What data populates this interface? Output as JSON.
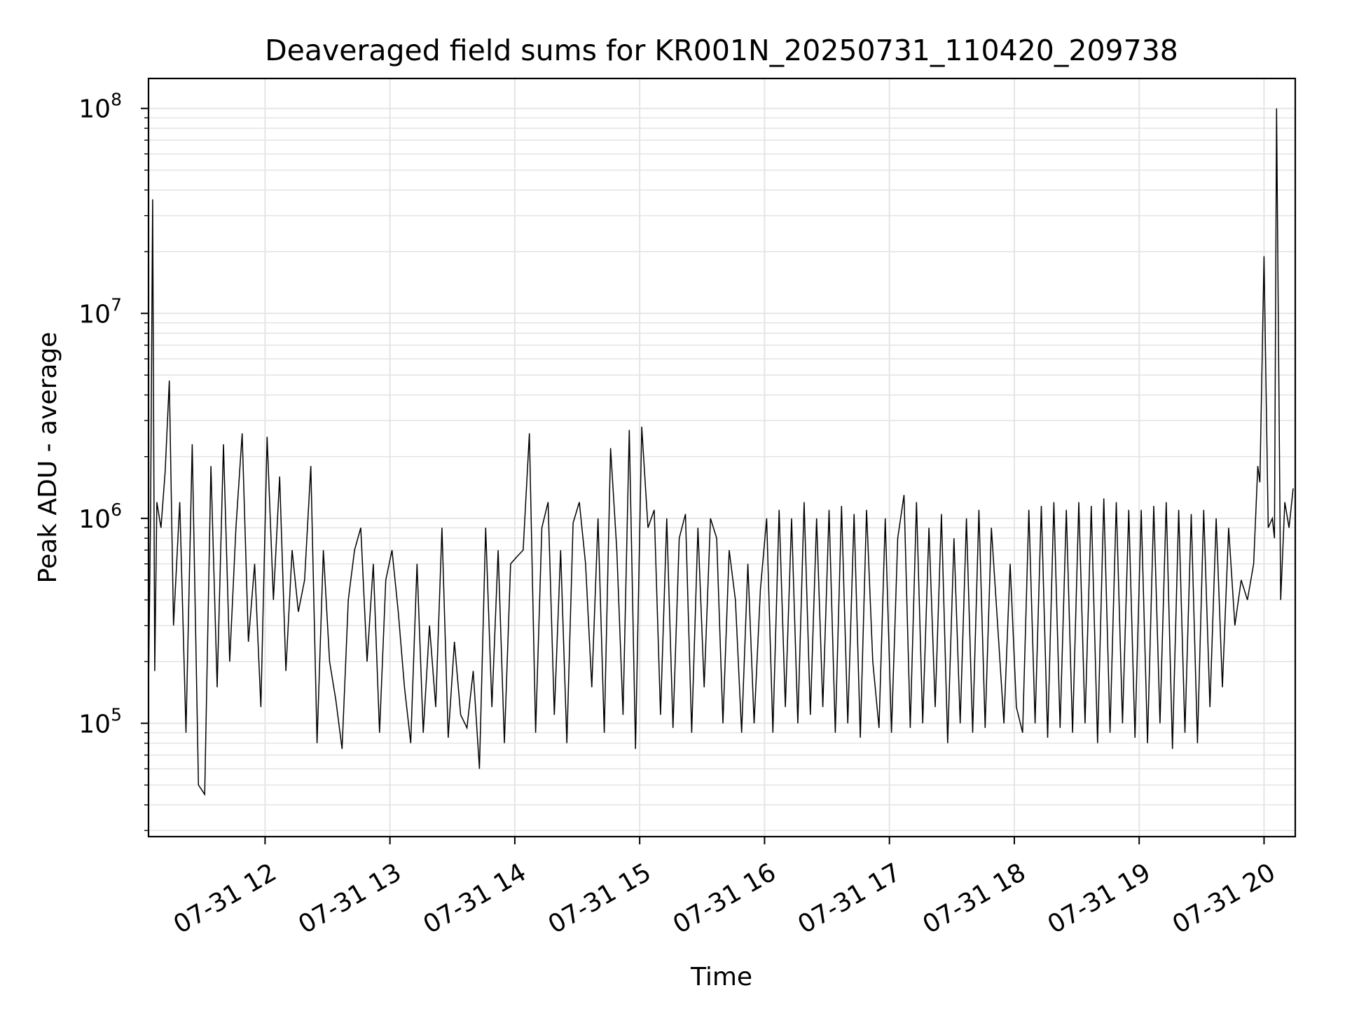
{
  "chart_data": {
    "type": "line",
    "title": "Deaveraged field sums for KR001N_20250731_110420_209738",
    "xlabel": "Time",
    "ylabel": "Peak ADU - average",
    "y_scale": "log",
    "grid": true,
    "grid_includes_minor": true,
    "line_color": "#000000",
    "grid_color": "#e5e5e5",
    "xlim": [
      "2025-07-31 11:04",
      "2025-07-31 20:15"
    ],
    "ylim": [
      28000,
      140000000
    ],
    "x_ticks": [
      {
        "value": "2025-07-31 12:00",
        "label": "07-31 12"
      },
      {
        "value": "2025-07-31 13:00",
        "label": "07-31 13"
      },
      {
        "value": "2025-07-31 14:00",
        "label": "07-31 14"
      },
      {
        "value": "2025-07-31 15:00",
        "label": "07-31 15"
      },
      {
        "value": "2025-07-31 16:00",
        "label": "07-31 16"
      },
      {
        "value": "2025-07-31 17:00",
        "label": "07-31 17"
      },
      {
        "value": "2025-07-31 18:00",
        "label": "07-31 18"
      },
      {
        "value": "2025-07-31 19:00",
        "label": "07-31 19"
      },
      {
        "value": "2025-07-31 20:00",
        "label": "07-31 20"
      }
    ],
    "y_ticks": [
      {
        "value": 100000,
        "base": "10",
        "exp": "5"
      },
      {
        "value": 1000000,
        "base": "10",
        "exp": "6"
      },
      {
        "value": 10000000,
        "base": "10",
        "exp": "7"
      },
      {
        "value": 100000000,
        "base": "10",
        "exp": "8"
      }
    ],
    "series": [
      {
        "x": [
          "2025-07-31 11:04",
          "2025-07-31 11:05",
          "2025-07-31 11:06",
          "2025-07-31 11:07",
          "2025-07-31 11:08",
          "2025-07-31 11:10",
          "2025-07-31 11:12",
          "2025-07-31 11:14",
          "2025-07-31 11:16",
          "2025-07-31 11:19",
          "2025-07-31 11:22",
          "2025-07-31 11:25",
          "2025-07-31 11:28",
          "2025-07-31 11:31",
          "2025-07-31 11:34",
          "2025-07-31 11:37",
          "2025-07-31 11:40",
          "2025-07-31 11:43",
          "2025-07-31 11:46",
          "2025-07-31 11:49",
          "2025-07-31 11:52",
          "2025-07-31 11:55",
          "2025-07-31 11:58",
          "2025-07-31 12:01",
          "2025-07-31 12:04",
          "2025-07-31 12:07",
          "2025-07-31 12:10",
          "2025-07-31 12:13",
          "2025-07-31 12:16",
          "2025-07-31 12:19",
          "2025-07-31 12:22",
          "2025-07-31 12:25",
          "2025-07-31 12:28",
          "2025-07-31 12:31",
          "2025-07-31 12:34",
          "2025-07-31 12:37",
          "2025-07-31 12:40",
          "2025-07-31 12:43",
          "2025-07-31 12:46",
          "2025-07-31 12:49",
          "2025-07-31 12:52",
          "2025-07-31 12:55",
          "2025-07-31 12:58",
          "2025-07-31 13:01",
          "2025-07-31 13:04",
          "2025-07-31 13:07",
          "2025-07-31 13:10",
          "2025-07-31 13:13",
          "2025-07-31 13:16",
          "2025-07-31 13:19",
          "2025-07-31 13:22",
          "2025-07-31 13:25",
          "2025-07-31 13:28",
          "2025-07-31 13:31",
          "2025-07-31 13:34",
          "2025-07-31 13:37",
          "2025-07-31 13:40",
          "2025-07-31 13:43",
          "2025-07-31 13:46",
          "2025-07-31 13:49",
          "2025-07-31 13:52",
          "2025-07-31 13:55",
          "2025-07-31 13:58",
          "2025-07-31 14:01",
          "2025-07-31 14:04",
          "2025-07-31 14:07",
          "2025-07-31 14:10",
          "2025-07-31 14:13",
          "2025-07-31 14:16",
          "2025-07-31 14:19",
          "2025-07-31 14:22",
          "2025-07-31 14:25",
          "2025-07-31 14:28",
          "2025-07-31 14:31",
          "2025-07-31 14:34",
          "2025-07-31 14:37",
          "2025-07-31 14:40",
          "2025-07-31 14:43",
          "2025-07-31 14:46",
          "2025-07-31 14:49",
          "2025-07-31 14:52",
          "2025-07-31 14:55",
          "2025-07-31 14:58",
          "2025-07-31 15:01",
          "2025-07-31 15:04",
          "2025-07-31 15:07",
          "2025-07-31 15:10",
          "2025-07-31 15:13",
          "2025-07-31 15:16",
          "2025-07-31 15:19",
          "2025-07-31 15:22",
          "2025-07-31 15:25",
          "2025-07-31 15:28",
          "2025-07-31 15:31",
          "2025-07-31 15:34",
          "2025-07-31 15:37",
          "2025-07-31 15:40",
          "2025-07-31 15:43",
          "2025-07-31 15:46",
          "2025-07-31 15:49",
          "2025-07-31 15:52",
          "2025-07-31 15:55",
          "2025-07-31 15:58",
          "2025-07-31 16:01",
          "2025-07-31 16:04",
          "2025-07-31 16:07",
          "2025-07-31 16:10",
          "2025-07-31 16:13",
          "2025-07-31 16:16",
          "2025-07-31 16:19",
          "2025-07-31 16:22",
          "2025-07-31 16:25",
          "2025-07-31 16:28",
          "2025-07-31 16:31",
          "2025-07-31 16:34",
          "2025-07-31 16:37",
          "2025-07-31 16:40",
          "2025-07-31 16:43",
          "2025-07-31 16:46",
          "2025-07-31 16:49",
          "2025-07-31 16:52",
          "2025-07-31 16:55",
          "2025-07-31 16:58",
          "2025-07-31 17:01",
          "2025-07-31 17:04",
          "2025-07-31 17:07",
          "2025-07-31 17:10",
          "2025-07-31 17:13",
          "2025-07-31 17:16",
          "2025-07-31 17:19",
          "2025-07-31 17:22",
          "2025-07-31 17:25",
          "2025-07-31 17:28",
          "2025-07-31 17:31",
          "2025-07-31 17:34",
          "2025-07-31 17:37",
          "2025-07-31 17:40",
          "2025-07-31 17:43",
          "2025-07-31 17:46",
          "2025-07-31 17:49",
          "2025-07-31 17:52",
          "2025-07-31 17:55",
          "2025-07-31 17:58",
          "2025-07-31 18:01",
          "2025-07-31 18:04",
          "2025-07-31 18:07",
          "2025-07-31 18:10",
          "2025-07-31 18:13",
          "2025-07-31 18:16",
          "2025-07-31 18:19",
          "2025-07-31 18:22",
          "2025-07-31 18:25",
          "2025-07-31 18:28",
          "2025-07-31 18:31",
          "2025-07-31 18:34",
          "2025-07-31 18:37",
          "2025-07-31 18:40",
          "2025-07-31 18:43",
          "2025-07-31 18:46",
          "2025-07-31 18:49",
          "2025-07-31 18:52",
          "2025-07-31 18:55",
          "2025-07-31 18:58",
          "2025-07-31 19:01",
          "2025-07-31 19:04",
          "2025-07-31 19:07",
          "2025-07-31 19:10",
          "2025-07-31 19:13",
          "2025-07-31 19:16",
          "2025-07-31 19:19",
          "2025-07-31 19:22",
          "2025-07-31 19:25",
          "2025-07-31 19:28",
          "2025-07-31 19:31",
          "2025-07-31 19:34",
          "2025-07-31 19:37",
          "2025-07-31 19:40",
          "2025-07-31 19:43",
          "2025-07-31 19:46",
          "2025-07-31 19:49",
          "2025-07-31 19:52",
          "2025-07-31 19:55",
          "2025-07-31 19:57",
          "2025-07-31 19:58",
          "2025-07-31 20:00",
          "2025-07-31 20:02",
          "2025-07-31 20:04",
          "2025-07-31 20:05",
          "2025-07-31 20:06",
          "2025-07-31 20:08",
          "2025-07-31 20:10",
          "2025-07-31 20:12",
          "2025-07-31 20:14"
        ],
        "y": [
          150000,
          1100000,
          36000000,
          180000,
          1200000,
          900000,
          1700000,
          4700000,
          300000,
          1200000,
          90000,
          2300000,
          50000,
          45000,
          1800000,
          150000,
          2300000,
          200000,
          900000,
          2600000,
          250000,
          600000,
          120000,
          2500000,
          400000,
          1600000,
          180000,
          700000,
          350000,
          500000,
          1800000,
          80000,
          700000,
          200000,
          130000,
          75000,
          400000,
          700000,
          900000,
          200000,
          600000,
          90000,
          500000,
          700000,
          350000,
          150000,
          80000,
          600000,
          90000,
          300000,
          120000,
          900000,
          85000,
          250000,
          110000,
          95000,
          180000,
          60000,
          900000,
          120000,
          700000,
          80000,
          600000,
          650000,
          700000,
          2600000,
          90000,
          900000,
          1200000,
          110000,
          700000,
          80000,
          950000,
          1200000,
          600000,
          150000,
          1000000,
          90000,
          2200000,
          700000,
          110000,
          2700000,
          75000,
          2800000,
          900000,
          1100000,
          110000,
          1000000,
          95000,
          800000,
          1050000,
          90000,
          900000,
          150000,
          1000000,
          800000,
          100000,
          700000,
          400000,
          90000,
          600000,
          100000,
          450000,
          1000000,
          90000,
          1100000,
          120000,
          1000000,
          100000,
          1200000,
          110000,
          1000000,
          120000,
          1100000,
          90000,
          1150000,
          100000,
          1050000,
          85000,
          1100000,
          200000,
          95000,
          1000000,
          90000,
          800000,
          1300000,
          95000,
          1200000,
          100000,
          900000,
          120000,
          1050000,
          80000,
          800000,
          100000,
          1000000,
          90000,
          1100000,
          95000,
          900000,
          300000,
          100000,
          600000,
          120000,
          90000,
          1100000,
          100000,
          1150000,
          85000,
          1200000,
          95000,
          1100000,
          90000,
          1200000,
          100000,
          1150000,
          80000,
          1250000,
          90000,
          1200000,
          100000,
          1100000,
          85000,
          1100000,
          80000,
          1150000,
          100000,
          1200000,
          75000,
          1100000,
          90000,
          1050000,
          80000,
          1100000,
          120000,
          1000000,
          150000,
          900000,
          300000,
          500000,
          400000,
          600000,
          1800000,
          1500000,
          19000000,
          900000,
          1000000,
          800000,
          100000000,
          400000,
          1200000,
          900000,
          1400000
        ]
      }
    ]
  }
}
